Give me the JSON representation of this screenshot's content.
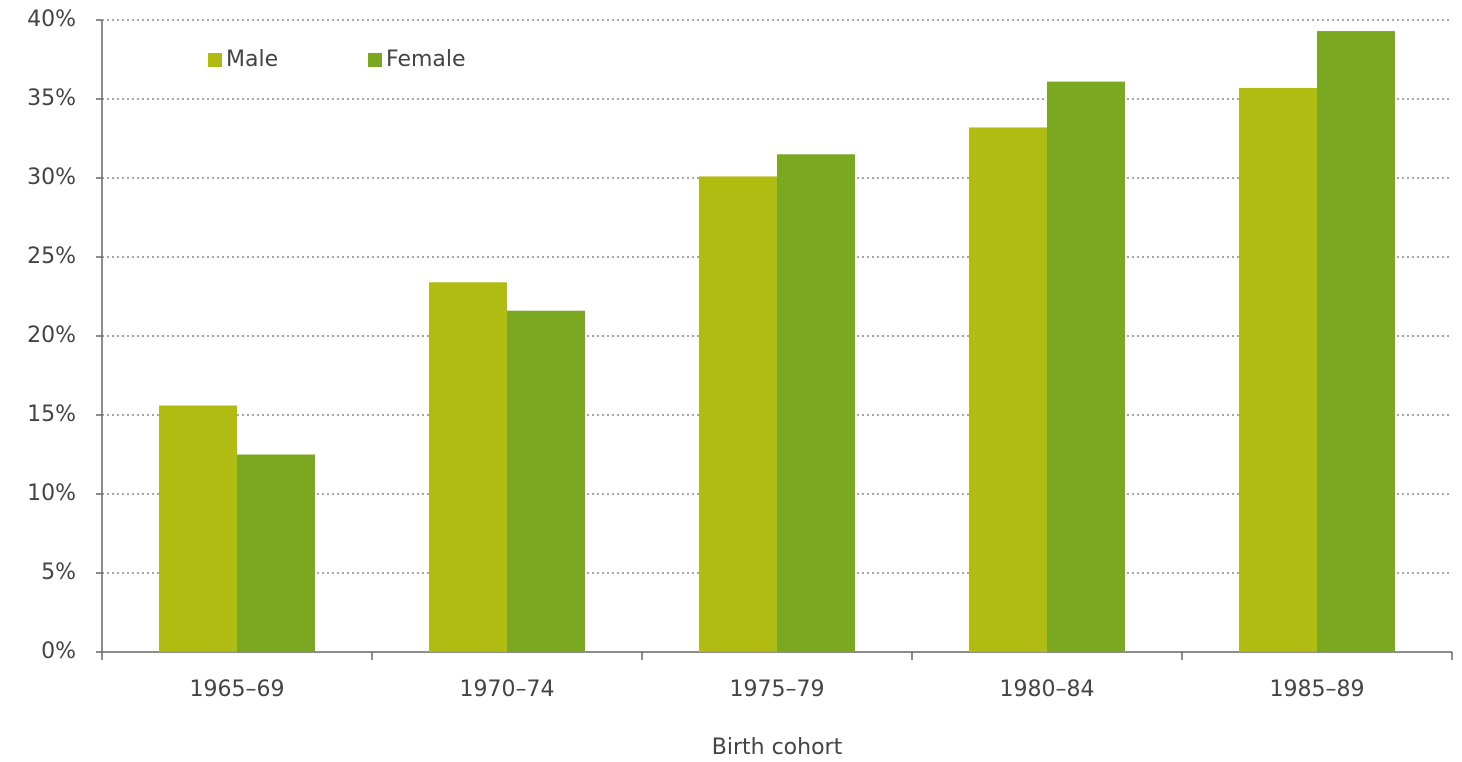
{
  "chart_data": {
    "type": "bar",
    "x_label": "Birth cohort",
    "categories": [
      "1965–69",
      "1970–74",
      "1975–79",
      "1980–84",
      "1985–89"
    ],
    "series": [
      {
        "name": "Male",
        "color": "#b1bc12",
        "values": [
          15.6,
          23.4,
          30.1,
          33.2,
          35.7
        ]
      },
      {
        "name": "Female",
        "color": "#7aa921",
        "values": [
          12.5,
          21.6,
          31.5,
          36.1,
          39.3
        ]
      }
    ],
    "ylim": [
      0,
      40
    ],
    "yticks": [
      {
        "value": 0,
        "label": "0%"
      },
      {
        "value": 5,
        "label": "5%"
      },
      {
        "value": 10,
        "label": "10%"
      },
      {
        "value": 15,
        "label": "15%"
      },
      {
        "value": 20,
        "label": "20%"
      },
      {
        "value": 25,
        "label": "25%"
      },
      {
        "value": 30,
        "label": "30%"
      },
      {
        "value": 35,
        "label": "35%"
      },
      {
        "value": 40,
        "label": "40%"
      }
    ],
    "grid": true,
    "legend": "top-left"
  }
}
